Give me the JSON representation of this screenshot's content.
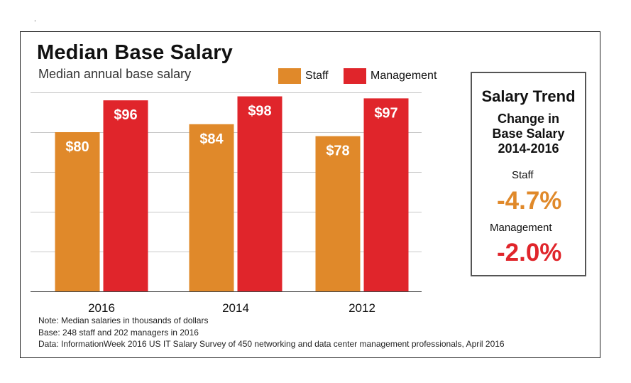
{
  "mark": ".",
  "legend": [
    {
      "name": "Staff",
      "color": "#e0892a"
    },
    {
      "name": "Management",
      "color": "#e0252b"
    }
  ],
  "notes": [
    "Note: Median salaries in thousands of dollars",
    "Base: 248 staff and 202 managers in 2016",
    "Data: InformationWeek 2016 US IT Salary Survey of 450 networking and data center management professionals, April 2016"
  ],
  "trend": {
    "title": "Salary Trend",
    "subtitle_line1": "Change in",
    "subtitle_line2": "Base Salary",
    "subtitle_line3": "2014-2016",
    "staff_label": "Staff",
    "staff_value": "-4.7%",
    "staff_color": "#e0892a",
    "management_label": "Management",
    "management_value": "-2.0%",
    "management_color": "#e0252b"
  },
  "chart_data": {
    "type": "bar",
    "title": "Median Base Salary",
    "subtitle": "Median annual base salary",
    "xlabel": "",
    "ylabel": "",
    "categories": [
      "2016",
      "2014",
      "2012"
    ],
    "series": [
      {
        "name": "Staff",
        "values": [
          80,
          84,
          78
        ],
        "labels": [
          "$80",
          "$84",
          "$78"
        ],
        "color": "#e0892a"
      },
      {
        "name": "Management",
        "values": [
          96,
          98,
          97
        ],
        "labels": [
          "$96",
          "$98",
          "$97"
        ],
        "color": "#e0252b"
      }
    ],
    "ylim": [
      0,
      100
    ],
    "gridlines": [
      20,
      40,
      60,
      80,
      100
    ],
    "grid": true
  }
}
